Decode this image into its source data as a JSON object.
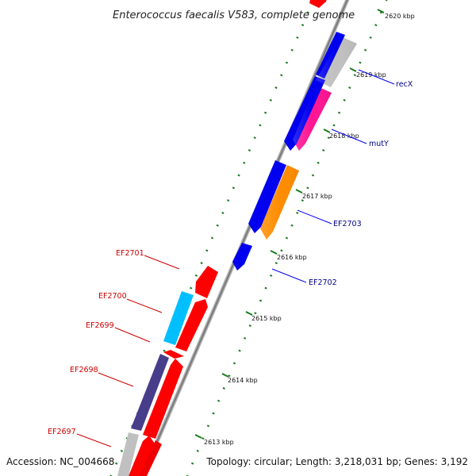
{
  "title": "Enterococcus faecalis V583, complete genome",
  "accession": "Accession: NC_004668",
  "topology": "Topology: circular; Length: 3,218,031 bp; Genes: 3,192",
  "colors": {
    "backbone": "#8c8c8c",
    "tick_dots": "#1a7a1a",
    "forward_label": "#cc0000",
    "reverse_label": "#00008b",
    "blue": "#0000ee",
    "red": "#ff0000",
    "magenta": "#ff1493",
    "orange": "#ff8c00",
    "cyan": "#00bfff",
    "slate": "#483d8b",
    "gray": "#c0c0c0"
  },
  "ticks": [
    "2613 kbp",
    "2614 kbp",
    "2615 kbp",
    "2616 kbp",
    "2617 kbp",
    "2618 kbp",
    "2619 kbp",
    "2620 kbp"
  ],
  "labels": {
    "forward": [
      "EF2697",
      "EF2698",
      "EF2699",
      "EF2700",
      "EF2701"
    ],
    "reverse": [
      "EF2702",
      "EF2703",
      "mutY",
      "recX"
    ]
  }
}
